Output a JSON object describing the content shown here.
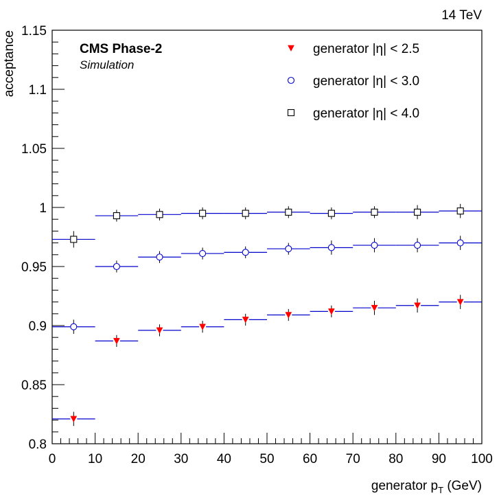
{
  "chart_data": {
    "type": "scatter",
    "energy_label": "14 TeV",
    "experiment_label": "CMS Phase-2",
    "experiment_sublabel": "Simulation",
    "xlabel_main": "generator p",
    "xlabel_sub": "T",
    "xlabel_unit": " (GeV)",
    "ylabel": "acceptance",
    "xlim": [
      0,
      100
    ],
    "ylim": [
      0.8,
      1.15
    ],
    "x_ticks": [
      0,
      10,
      20,
      30,
      40,
      50,
      60,
      70,
      80,
      90,
      100
    ],
    "y_ticks": [
      0.8,
      0.85,
      0.9,
      0.95,
      1,
      1.05,
      1.1,
      1.15
    ],
    "y_tick_labels": [
      "0.8",
      "0.85",
      "0.9",
      "0.95",
      "1",
      "1.05",
      "1.1",
      "1.15"
    ],
    "bin_edges": [
      0,
      10,
      20,
      30,
      40,
      50,
      60,
      70,
      80,
      90,
      100
    ],
    "x": [
      5,
      15,
      25,
      35,
      45,
      55,
      65,
      75,
      85,
      95
    ],
    "series": [
      {
        "name": "generator |η| < 2.5",
        "marker": "triangle-down",
        "marker_color": "#ff0000",
        "line_color": "#0000cc",
        "values": [
          0.821,
          0.887,
          0.896,
          0.899,
          0.905,
          0.909,
          0.912,
          0.915,
          0.917,
          0.92
        ],
        "errors": [
          0.006,
          0.005,
          0.005,
          0.005,
          0.005,
          0.005,
          0.005,
          0.006,
          0.006,
          0.006
        ]
      },
      {
        "name": "generator |η| < 3.0",
        "marker": "circle-open",
        "marker_color": "#0000cc",
        "line_color": "#0000cc",
        "values": [
          0.899,
          0.95,
          0.958,
          0.961,
          0.962,
          0.965,
          0.966,
          0.968,
          0.968,
          0.97
        ],
        "errors": [
          0.006,
          0.005,
          0.005,
          0.005,
          0.005,
          0.005,
          0.006,
          0.006,
          0.006,
          0.006
        ]
      },
      {
        "name": "generator |η| < 4.0",
        "marker": "square-open",
        "marker_color": "#000000",
        "line_color": "#0000cc",
        "values": [
          0.973,
          0.993,
          0.994,
          0.995,
          0.995,
          0.996,
          0.995,
          0.996,
          0.996,
          0.997
        ],
        "errors": [
          0.007,
          0.005,
          0.005,
          0.005,
          0.005,
          0.005,
          0.005,
          0.005,
          0.006,
          0.006
        ]
      }
    ],
    "legend_position": "top-right",
    "grid": false
  }
}
